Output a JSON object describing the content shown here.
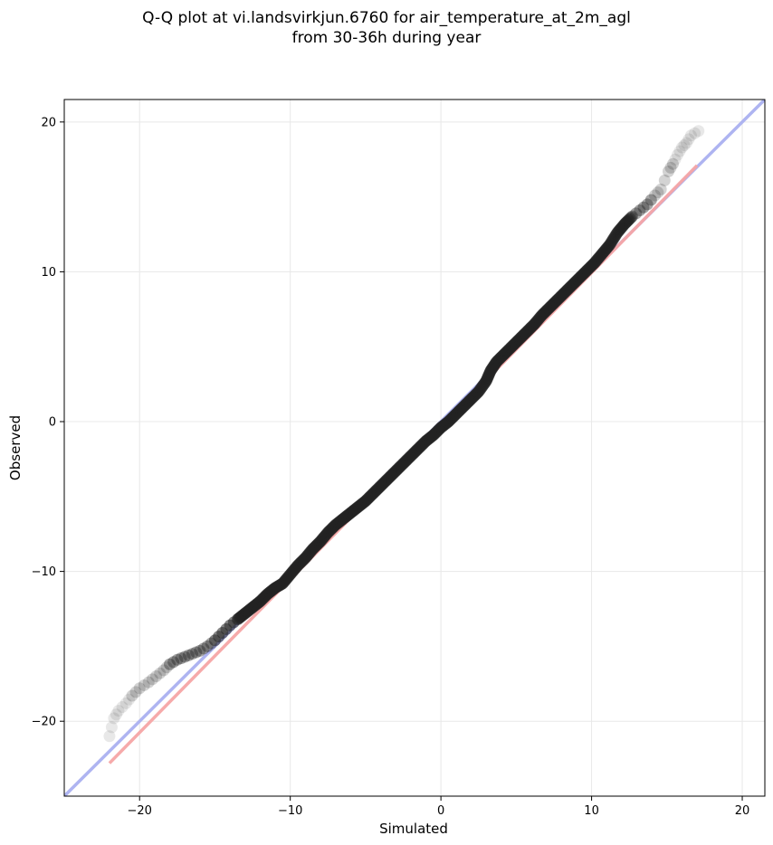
{
  "title_line1": "Q-Q plot at vi.landsvirkjun.6760 for air_temperature_at_2m_agl",
  "title_line2": "from 30-36h during year",
  "chart_data": {
    "type": "scatter",
    "xlabel": "Simulated",
    "ylabel": "Observed",
    "xlim": [
      -25,
      21.5
    ],
    "ylim": [
      -25,
      21.5
    ],
    "xticks": [
      -20,
      -10,
      0,
      10,
      20
    ],
    "yticks": [
      -20,
      -10,
      0,
      10,
      20
    ],
    "xtick_labels": [
      "−20",
      "−10",
      "0",
      "10",
      "20"
    ],
    "ytick_labels": [
      "−20",
      "−10",
      "0",
      "10",
      "20"
    ],
    "grid": true,
    "reference_line": {
      "color": "#aab0f0",
      "from": [
        -25,
        -25
      ],
      "to": [
        21.5,
        21.5
      ]
    },
    "fit_line": {
      "color": "#f5a5a5",
      "from": [
        -22,
        -22.8
      ],
      "to": [
        17,
        17.1
      ]
    },
    "point_color": "#222222",
    "series": [
      {
        "points": [
          [
            -22.0,
            -21.0
          ],
          [
            -21.7,
            -19.8
          ],
          [
            -21.4,
            -19.3
          ],
          [
            -20.9,
            -18.8
          ],
          [
            -20.5,
            -18.3
          ],
          [
            -20.0,
            -17.8
          ],
          [
            -19.4,
            -17.4
          ],
          [
            -18.9,
            -17.0
          ],
          [
            -18.4,
            -16.6
          ],
          [
            -18.0,
            -16.2
          ],
          [
            -17.5,
            -15.9
          ],
          [
            -17.0,
            -15.7
          ],
          [
            -16.5,
            -15.5
          ],
          [
            -16.0,
            -15.3
          ],
          [
            -15.5,
            -15.0
          ],
          [
            -15.0,
            -14.6
          ],
          [
            -14.5,
            -14.1
          ],
          [
            -14.0,
            -13.6
          ],
          [
            -13.5,
            -13.2
          ],
          [
            -13.0,
            -12.8
          ],
          [
            -12.5,
            -12.4
          ],
          [
            -12.0,
            -12.0
          ],
          [
            -11.5,
            -11.5
          ],
          [
            -11.0,
            -11.1
          ],
          [
            -10.5,
            -10.8
          ],
          [
            -10.0,
            -10.2
          ],
          [
            -9.5,
            -9.6
          ],
          [
            -9.0,
            -9.1
          ],
          [
            -8.5,
            -8.5
          ],
          [
            -8.0,
            -8.0
          ],
          [
            -7.5,
            -7.4
          ],
          [
            -7.0,
            -6.9
          ],
          [
            -6.5,
            -6.5
          ],
          [
            -6.0,
            -6.1
          ],
          [
            -5.5,
            -5.7
          ],
          [
            -5.0,
            -5.3
          ],
          [
            -4.5,
            -4.8
          ],
          [
            -4.0,
            -4.3
          ],
          [
            -3.5,
            -3.8
          ],
          [
            -3.0,
            -3.3
          ],
          [
            -2.5,
            -2.8
          ],
          [
            -2.0,
            -2.3
          ],
          [
            -1.5,
            -1.8
          ],
          [
            -1.0,
            -1.3
          ],
          [
            -0.5,
            -0.9
          ],
          [
            0.0,
            -0.4
          ],
          [
            0.5,
            0.0
          ],
          [
            1.0,
            0.5
          ],
          [
            1.5,
            1.0
          ],
          [
            2.0,
            1.5
          ],
          [
            2.5,
            2.0
          ],
          [
            3.0,
            2.7
          ],
          [
            3.3,
            3.4
          ],
          [
            3.7,
            4.0
          ],
          [
            4.2,
            4.5
          ],
          [
            4.7,
            5.0
          ],
          [
            5.2,
            5.5
          ],
          [
            5.7,
            6.0
          ],
          [
            6.2,
            6.5
          ],
          [
            6.7,
            7.1
          ],
          [
            7.2,
            7.6
          ],
          [
            7.7,
            8.1
          ],
          [
            8.2,
            8.6
          ],
          [
            8.7,
            9.1
          ],
          [
            9.2,
            9.6
          ],
          [
            9.7,
            10.1
          ],
          [
            10.2,
            10.6
          ],
          [
            10.7,
            11.2
          ],
          [
            11.2,
            11.8
          ],
          [
            11.7,
            12.6
          ],
          [
            12.2,
            13.2
          ],
          [
            12.7,
            13.7
          ],
          [
            13.2,
            14.1
          ],
          [
            13.7,
            14.5
          ],
          [
            14.2,
            15.1
          ],
          [
            14.6,
            15.5
          ],
          [
            15.1,
            16.7
          ],
          [
            15.4,
            17.2
          ],
          [
            15.7,
            17.8
          ],
          [
            16.0,
            18.3
          ],
          [
            16.3,
            18.6
          ],
          [
            16.6,
            19.1
          ],
          [
            17.1,
            19.4
          ]
        ]
      }
    ]
  }
}
